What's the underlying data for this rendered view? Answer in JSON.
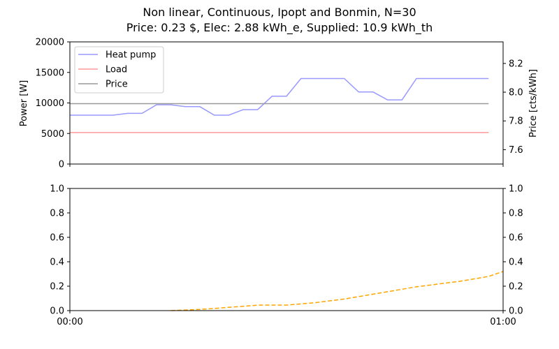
{
  "figure": {
    "title_line1": "Non linear, Continuous, Ipopt and Bonmin, N=30",
    "title_line2": "Price: 0.23 $, Elec: 2.88 kWh_e, Supplied: 10.9 kWh_th"
  },
  "chart_data": [
    {
      "type": "line",
      "ylabel": "Power [W]",
      "ylabel_right": "Price [cts/kWh]",
      "ylim": [
        0,
        20000
      ],
      "yticks": [
        "0",
        "5000",
        "10000",
        "15000",
        "20000"
      ],
      "ylim_right": [
        7.5,
        8.35
      ],
      "yticks_right": [
        "7.6",
        "7.8",
        "8.0",
        "8.2"
      ],
      "xlim": [
        0,
        60
      ],
      "legend_position": "top-left",
      "series": [
        {
          "name": "Heat pump",
          "color": "#9999ff",
          "axis": "left",
          "x": [
            0,
            2,
            4,
            6,
            8,
            10,
            12,
            14,
            16,
            18,
            20,
            22,
            24,
            26,
            28,
            30,
            32,
            34,
            36,
            38,
            40,
            42,
            44,
            46,
            48,
            50,
            52,
            54,
            56,
            58
          ],
          "values": [
            8000,
            8000,
            8000,
            8000,
            8300,
            8300,
            9700,
            9700,
            9400,
            9400,
            8000,
            8000,
            8900,
            8900,
            11100,
            11100,
            14000,
            14000,
            14000,
            14000,
            11800,
            11800,
            10500,
            10500,
            14000,
            14000,
            14000,
            14000,
            14000,
            14000
          ]
        },
        {
          "name": "Load",
          "color": "#ff9999",
          "axis": "left",
          "x": [
            0,
            58
          ],
          "values": [
            5150,
            5150
          ]
        },
        {
          "name": "Price",
          "color": "#999999",
          "axis": "right",
          "x": [
            0,
            58
          ],
          "values": [
            7.92,
            7.92
          ]
        }
      ]
    },
    {
      "type": "line",
      "ylim": [
        0,
        1.0
      ],
      "yticks": [
        "0.0",
        "0.2",
        "0.4",
        "0.6",
        "0.8",
        "1.0"
      ],
      "yticks_right": [
        "0.0",
        "0.2",
        "0.4",
        "0.6",
        "0.8",
        "1.0"
      ],
      "xlim": [
        0,
        60
      ],
      "xticks": [
        "00:00",
        "01:00"
      ],
      "series": [
        {
          "color": "#ffa500",
          "dashed": true,
          "x": [
            14,
            16,
            18,
            20,
            22,
            24,
            26,
            28,
            30,
            32,
            34,
            36,
            38,
            40,
            42,
            44,
            46,
            48,
            50,
            52,
            54,
            56,
            58,
            60
          ],
          "values": [
            0.0,
            0.005,
            0.01,
            0.018,
            0.027,
            0.035,
            0.045,
            0.045,
            0.045,
            0.055,
            0.065,
            0.08,
            0.095,
            0.115,
            0.135,
            0.155,
            0.175,
            0.195,
            0.21,
            0.225,
            0.24,
            0.26,
            0.28,
            0.32
          ]
        }
      ]
    }
  ]
}
